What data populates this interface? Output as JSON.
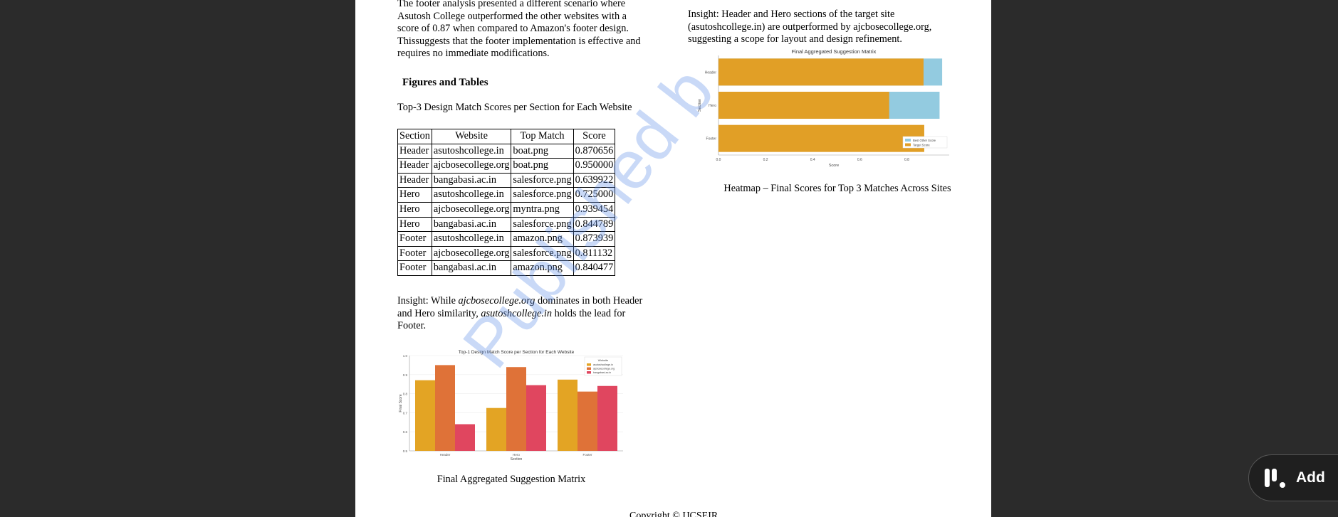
{
  "document": {
    "paragraph_footer": [
      "The footer analysis presented a different scenario where",
      "Asutosh College outperformed the other websites with a",
      "score of 0.87 when compared to Amazon's footer design.",
      "Thissuggests that the footer implementation is effective and",
      "requires no immediate modifications."
    ],
    "section_heading": "Figures and Tables",
    "table_caption": "Top-3 Design Match Scores per Section for Each Website",
    "table": {
      "headers": [
        "Section",
        "Website",
        "Top Match",
        "Score"
      ],
      "rows": [
        [
          "Header",
          "asutoshcollege.in",
          "boat.png",
          "0.870656"
        ],
        [
          "Header",
          "ajcbosecollege.org",
          "boat.png",
          "0.950000"
        ],
        [
          "Header",
          "bangabasi.ac.in",
          "salesforce.png",
          "0.639922"
        ],
        [
          "Hero",
          "asutoshcollege.in",
          "salesforce.png",
          "0.725000"
        ],
        [
          "Hero",
          "ajcbosecollege.org",
          "myntra.png",
          "0.939454"
        ],
        [
          "Hero",
          "bangabasi.ac.in",
          "salesforce.png",
          "0.844789"
        ],
        [
          "Footer",
          "asutoshcollege.in",
          "amazon.png",
          "0.873939"
        ],
        [
          "Footer",
          "ajcbosecollege.org",
          "salesforce.png",
          "0.811132"
        ],
        [
          "Footer",
          "bangabasi.ac.in",
          "amazon.png",
          "0.840477"
        ]
      ]
    },
    "insight_left": {
      "prefix": "Insight: While ",
      "site1": "ajcbosecollege.org",
      "middle1": " dominates in both Header",
      "middle2": "and Hero similarity, ",
      "site2": "asutoshcollege.in",
      "suffix1": " holds the lead for",
      "suffix2": "Footer."
    },
    "insight_right": [
      "Insight: Header and Hero sections of the target site",
      "(asutoshcollege.in) are outperformed by ajcbosecollege.org,",
      "suggesting a scope for layout and design refinement."
    ],
    "caption_bar_chart": "Final Aggregated Suggestion Matrix",
    "caption_hbar_chart": "Heatmap – Final Scores for Top 3 Matches Across Sites",
    "footer_text": "Copyright © IJCSEIR",
    "watermark": "Published b"
  },
  "add_button": {
    "label": "Add",
    "icon": "add-logo-icon"
  },
  "chart_data": [
    {
      "type": "bar",
      "title": "Top-1 Design Match Score per Section for Each Website",
      "xlabel": "Section",
      "ylabel": "Final Score",
      "categories": [
        "Header",
        "Hero",
        "Footer"
      ],
      "ylim": [
        0.5,
        1.0
      ],
      "yticks": [
        0.5,
        0.6,
        0.7,
        0.8,
        0.9,
        1.0
      ],
      "legend_title": "Website",
      "legend_position": "top-right",
      "series": [
        {
          "name": "asutoshcollege.in",
          "color": "#e3a424",
          "values": [
            0.8707,
            0.725,
            0.8739
          ]
        },
        {
          "name": "ajcbosecollege.org",
          "color": "#df7238",
          "values": [
            0.95,
            0.9395,
            0.8111
          ]
        },
        {
          "name": "bangabasi.ac.in",
          "color": "#e0465f",
          "values": [
            0.6399,
            0.8448,
            0.8405
          ]
        }
      ]
    },
    {
      "type": "bar",
      "orientation": "horizontal",
      "title": "Final Aggregated Suggestion Matrix",
      "xlabel": "Score",
      "ylabel": "Section",
      "categories": [
        "Header",
        "Hero",
        "Footer"
      ],
      "xlim": [
        0,
        0.98
      ],
      "xticks": [
        0.0,
        0.2,
        0.4,
        0.6,
        0.8
      ],
      "legend_position": "bottom-right",
      "series": [
        {
          "name": "Best Other Score",
          "color": "#93cbe0",
          "values": [
            0.95,
            0.939,
            0.0
          ]
        },
        {
          "name": "Target Score",
          "color": "#e19f26",
          "values": [
            0.871,
            0.725,
            0.874
          ]
        }
      ]
    }
  ]
}
